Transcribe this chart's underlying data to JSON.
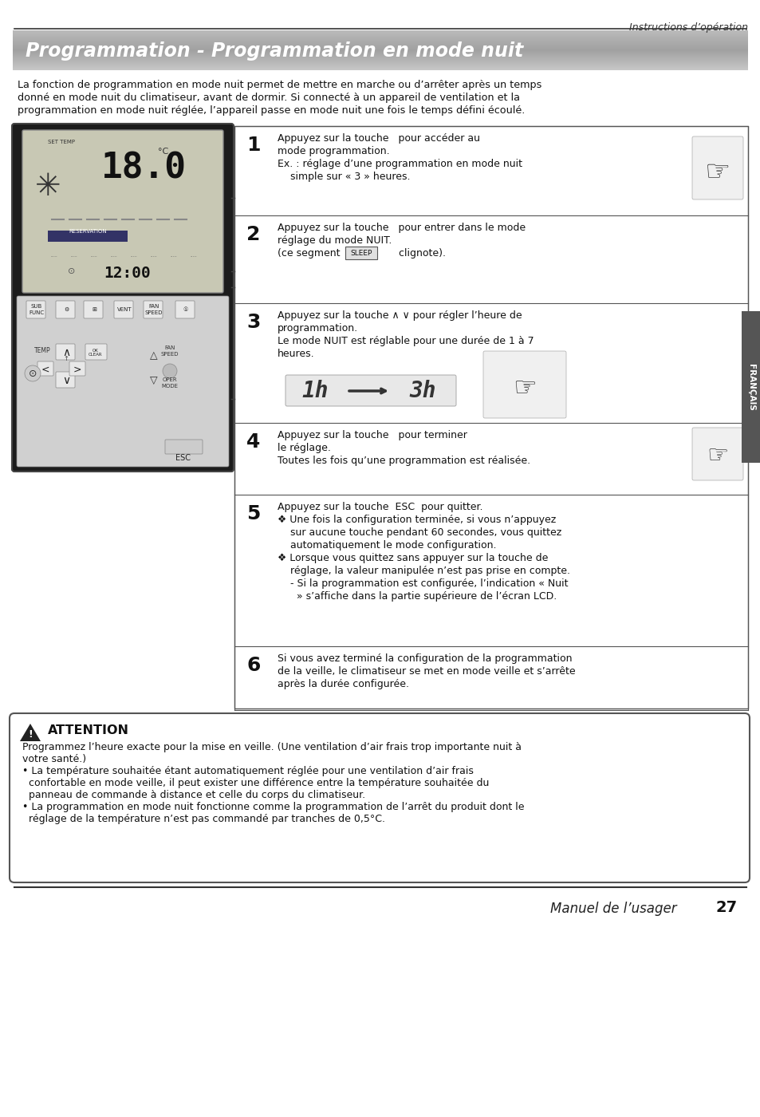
{
  "page_bg": "#ffffff",
  "top_label": "Instructions d’opération",
  "title": "Programmation - Programmation en mode nuit",
  "intro_line1": "La fonction de programmation en mode nuit permet de mettre en marche ou d’arrêter après un temps",
  "intro_line2": "donné en mode nuit du climatiseur, avant de dormir. Si connecté à un appareil de ventilation et la",
  "intro_line3": "programmation en mode nuit réglée, l’appareil passe en mode nuit une fois le temps défini écoulé.",
  "step1_num": "1",
  "step1_text1": "Appuyez sur la touche   pour accéder au",
  "step1_text2": "mode programmation.",
  "step1_text3": "Ex. : réglage d’une programmation en mode nuit",
  "step1_text4": "    simple sur « 3 » heures.",
  "step2_num": "2",
  "step2_text1": "Appuyez sur la touche   pour entrer dans le mode",
  "step2_text2": "réglage du mode NUIT.",
  "step2_text3": "(ce segment  SLEEP  clignote).",
  "step3_num": "3",
  "step3_text1": "Appuyez sur la touche ∧ ∨ pour régler l’heure de",
  "step3_text2": "programmation.",
  "step3_text3": "Le mode NUIT est réglable pour une durée de 1 à 7",
  "step3_text4": "heures.",
  "step4_num": "4",
  "step4_text1": "Appuyez sur la touche   pour terminer",
  "step4_text2": "le réglage.",
  "step4_text3": "Toutes les fois qu’une programmation est réalisée.",
  "step5_num": "5",
  "step5_text1": "Appuyez sur la touche  ESC  pour quitter.",
  "step5_text2": "❖ Une fois la configuration terminée, si vous n’appuyez",
  "step5_text3": "    sur aucune touche pendant 60 secondes, vous quittez",
  "step5_text4": "    automatiquement le mode configuration.",
  "step5_text5": "❖ Lorsque vous quittez sans appuyer sur la touche de",
  "step5_text6": "    réglage, la valeur manipulée n’est pas prise en compte.",
  "step5_text7": "    - Si la programmation est configurée, l’indication « Nuit",
  "step5_text8": "      » s’affiche dans la partie supérieure de l’écran LCD.",
  "step6_num": "6",
  "step6_text1": "Si vous avez terminé la configuration de la programmation",
  "step6_text2": "de la veille, le climatiseur se met en mode veille et s’arrête",
  "step6_text3": "après la durée configurée.",
  "att_title": "ATTENTION",
  "att_line1": "Programmez l’heure exacte pour la mise en veille. (Une ventilation d’air frais trop importante nuit à",
  "att_line2": "votre santé.)",
  "att_line3": "• La température souhaitée étant automatiquement réglée pour une ventilation d’air frais",
  "att_line4": "  confortable en mode veille, il peut exister une différence entre la température souhaitée du",
  "att_line5": "  panneau de commande à distance et celle du corps du climatiseur.",
  "att_line6": "• La programmation en mode nuit fonctionne comme la programmation de l’arrêt du produit dont le",
  "att_line7": "  réglage de la température n’est pas commandé par tranches de 0,5°C.",
  "footer_text": "Manuel de l’usager",
  "page_num": "27",
  "sidebar_label": "FRANÇAIS",
  "title_grad_top": "#b0b0b0",
  "title_grad_bot": "#d8d8d8",
  "step_box_color": "#000000",
  "divider_color": "#888888",
  "att_border": "#555555"
}
